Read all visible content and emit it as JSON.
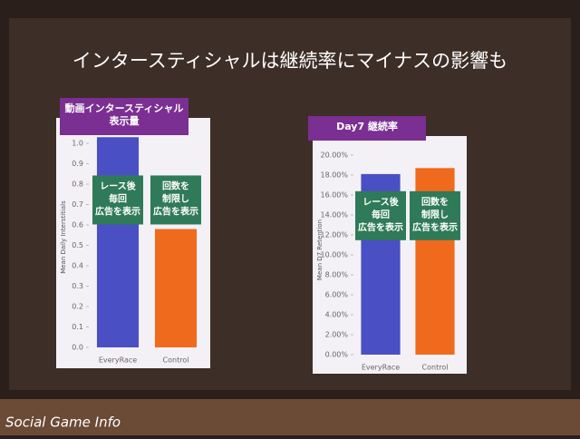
{
  "slide_title": "インタースティシャルは継続率にマイナスの影響も",
  "watermark": "Social Game Info",
  "chart_data": [
    {
      "type": "bar",
      "title": [
        "動画インタースティシャル",
        "表示量"
      ],
      "ylabel": "Mean Daily Interstitials",
      "categories": [
        "EveryRace",
        "Control"
      ],
      "values": [
        1.03,
        0.58
      ],
      "colors": [
        "#4b4fc4",
        "#f06a1e"
      ],
      "ylim": [
        0,
        1.08
      ],
      "yticks": [
        {
          "value": 0,
          "label": "0.0"
        },
        0.1,
        0.2,
        0.3,
        0.4,
        0.5,
        0.6,
        0.7,
        0.8,
        0.9,
        {
          "value": 1,
          "label": "1.0"
        }
      ],
      "annotations": [
        [
          "レース後",
          "毎回",
          "広告を表示"
        ],
        [
          "回数を",
          "制限し",
          "広告を表示"
        ]
      ]
    },
    {
      "type": "bar",
      "title": [
        "Day7 継続率"
      ],
      "ylabel": "Mean D7 Retention",
      "categories": [
        "EveryRace",
        "Control"
      ],
      "values": [
        18.1,
        18.7
      ],
      "colors": [
        "#4b4fc4",
        "#f06a1e"
      ],
      "ylim": [
        0,
        21
      ],
      "yticks": [
        {
          "value": 0,
          "label": "0.00%"
        },
        {
          "value": 2,
          "label": "2.00%"
        },
        {
          "value": 4,
          "label": "4.00%"
        },
        {
          "value": 6,
          "label": "6.00%"
        },
        {
          "value": 8,
          "label": "8.00%"
        },
        {
          "value": 10,
          "label": "10.00%"
        },
        {
          "value": 12,
          "label": "12.00%"
        },
        {
          "value": 14,
          "label": "14.00%"
        },
        {
          "value": 16,
          "label": "16.00%"
        },
        {
          "value": 18,
          "label": "18.00%"
        },
        {
          "value": 20,
          "label": "20.00%"
        }
      ],
      "annotations": [
        [
          "レース後",
          "毎回",
          "広告を表示"
        ],
        [
          "回数を",
          "制限し",
          "広告を表示"
        ]
      ]
    }
  ]
}
